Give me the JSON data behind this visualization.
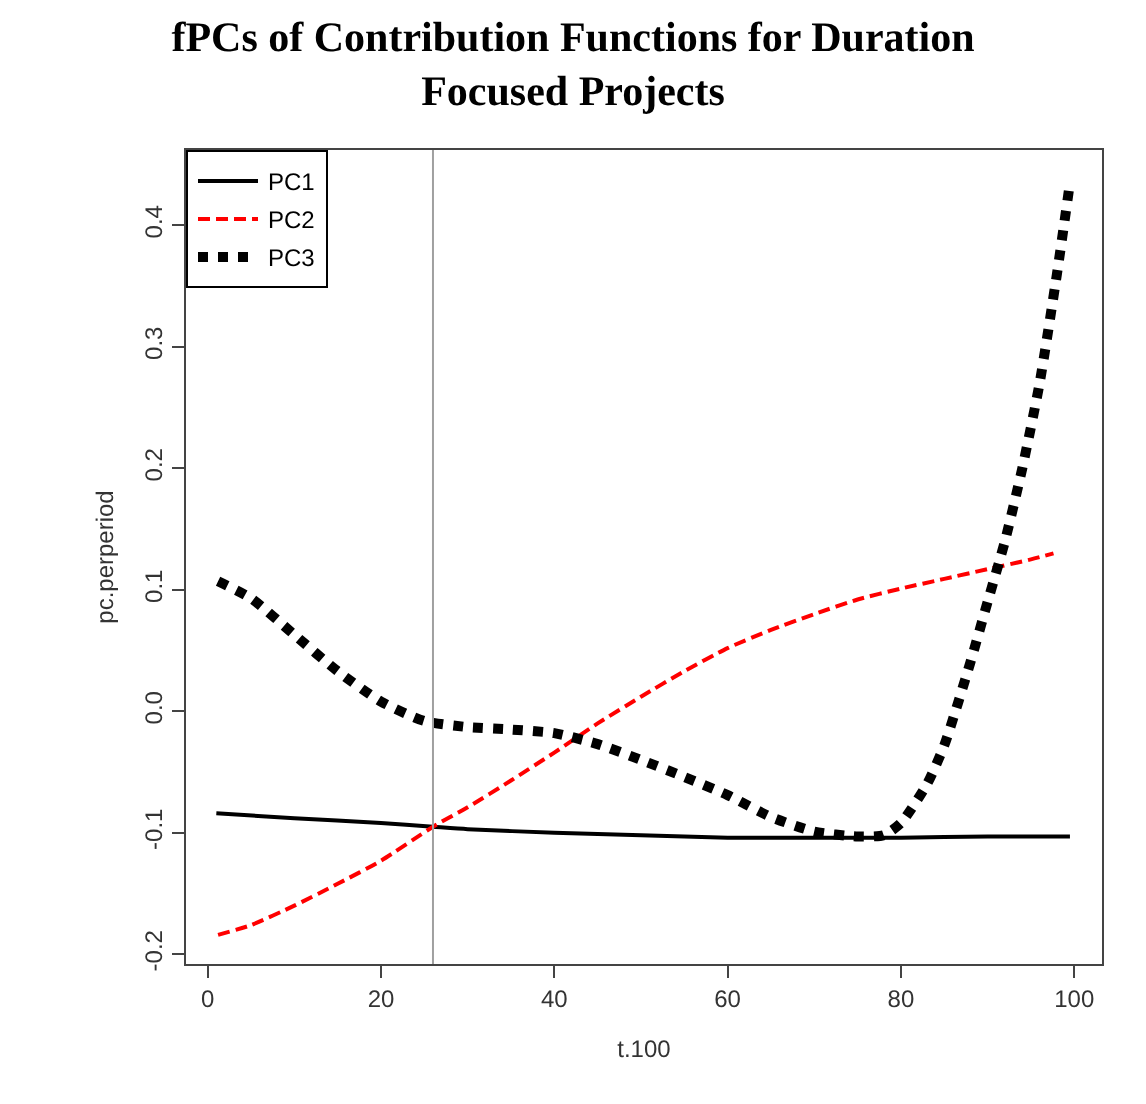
{
  "chart_data": {
    "type": "line",
    "title": "fPCs of Contribution Functions for Duration Focused Projects",
    "xlabel": "t.100",
    "ylabel": "pc.perperiod",
    "xlim": [
      -2.5,
      103.2
    ],
    "ylim": [
      -0.208,
      0.462
    ],
    "xticks": [
      0,
      20,
      40,
      60,
      80,
      100
    ],
    "yticks": [
      -0.2,
      -0.1,
      {
        "value": 0,
        "label": "0.0"
      },
      0.1,
      0.2,
      0.3,
      0.4
    ],
    "grid": false,
    "legend": "top left",
    "ref_lines": [
      {
        "axis": "x",
        "value": 26,
        "color": "#a0a0a0",
        "line_style": "solid"
      }
    ],
    "series": [
      {
        "name": "PC1",
        "color": "#000000",
        "line_style": "solid",
        "x": [
          1,
          10,
          20,
          26,
          30,
          40,
          50,
          60,
          70,
          80,
          90,
          99.5
        ],
        "values": [
          -0.084,
          -0.088,
          -0.092,
          -0.095,
          -0.097,
          -0.1,
          -0.102,
          -0.104,
          -0.104,
          -0.104,
          -0.103,
          -0.103
        ]
      },
      {
        "name": "PC2",
        "color": "#ff0000",
        "line_style": "dashed",
        "x": [
          1.2,
          5,
          10,
          15,
          20,
          26,
          30,
          35,
          40,
          45,
          50,
          55,
          60,
          65,
          70,
          75,
          80,
          85,
          90,
          95,
          97.6
        ],
        "values": [
          -0.184,
          -0.176,
          -0.16,
          -0.142,
          -0.123,
          -0.095,
          -0.079,
          -0.057,
          -0.034,
          -0.01,
          0.012,
          0.033,
          0.052,
          0.067,
          0.08,
          0.092,
          0.101,
          0.109,
          0.117,
          0.125,
          0.13
        ]
      },
      {
        "name": "PC3",
        "color": "#000000",
        "line_style": "dotted",
        "x": [
          1.2,
          5,
          10,
          15,
          20,
          25,
          30,
          35,
          40,
          45,
          50,
          55,
          60,
          65,
          70,
          75,
          78,
          80,
          83,
          85,
          88,
          90,
          92,
          94,
          96,
          98,
          99.5
        ],
        "values": [
          0.107,
          0.093,
          0.063,
          0.033,
          0.008,
          -0.008,
          -0.013,
          -0.015,
          -0.018,
          -0.027,
          -0.04,
          -0.054,
          -0.069,
          -0.087,
          -0.099,
          -0.103,
          -0.102,
          -0.092,
          -0.06,
          -0.028,
          0.04,
          0.09,
          0.14,
          0.2,
          0.27,
          0.36,
          0.435
        ]
      }
    ]
  }
}
